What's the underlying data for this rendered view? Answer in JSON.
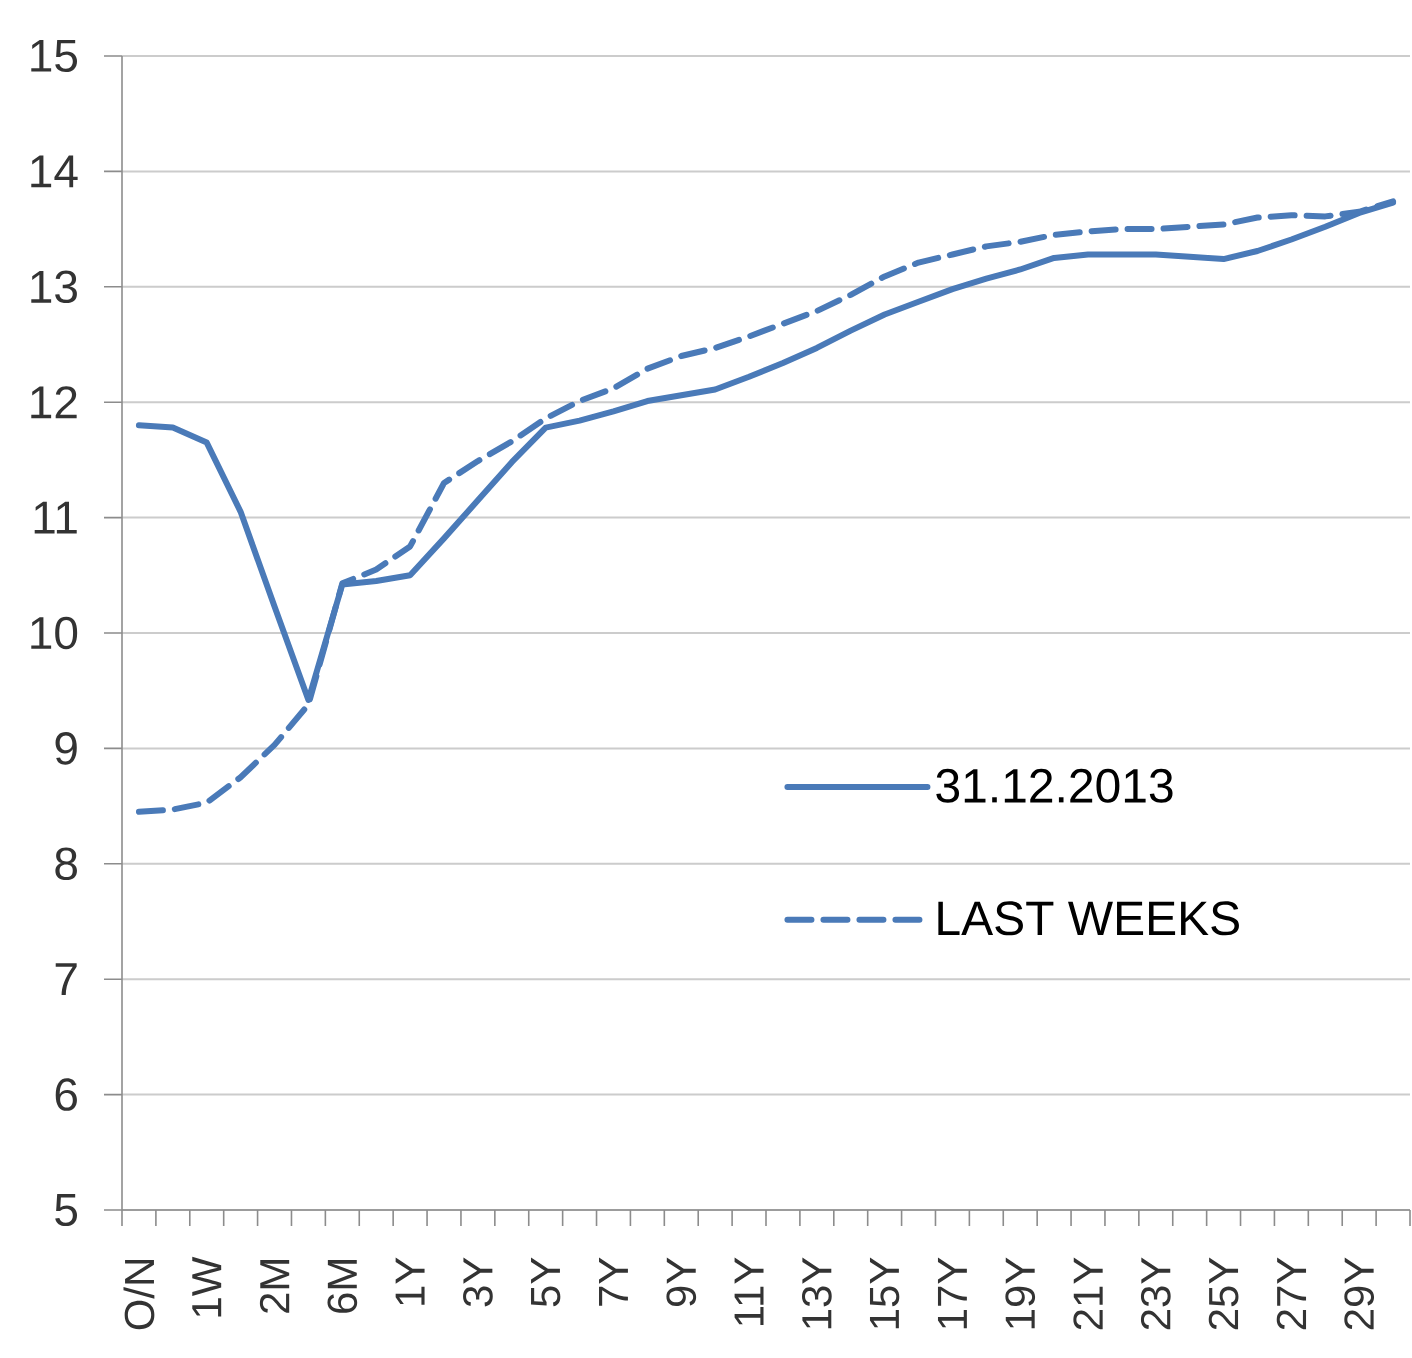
{
  "chart_data": {
    "type": "line",
    "categories": [
      "O/N",
      null,
      "1W",
      null,
      "2M",
      null,
      "6M",
      null,
      "1Y",
      null,
      "3Y",
      null,
      "5Y",
      null,
      "7Y",
      null,
      "9Y",
      null,
      "11Y",
      null,
      "13Y",
      null,
      "15Y",
      null,
      "17Y",
      null,
      "19Y",
      null,
      "21Y",
      null,
      "23Y",
      null,
      "25Y",
      null,
      "27Y",
      null,
      "29Y",
      null
    ],
    "series": [
      {
        "name": "31.12.2013",
        "color": "#4a7ab8",
        "line_style": "solid",
        "values": [
          11.8,
          11.78,
          11.65,
          11.05,
          10.23,
          9.42,
          10.42,
          10.45,
          10.5,
          10.82,
          11.15,
          11.48,
          11.78,
          11.84,
          11.92,
          12.01,
          12.06,
          12.11,
          12.22,
          12.34,
          12.47,
          12.62,
          12.76,
          12.87,
          12.98,
          13.07,
          13.15,
          13.25,
          13.28,
          13.28,
          13.28,
          13.26,
          13.24,
          13.31,
          13.41,
          13.52,
          13.64,
          13.73
        ]
      },
      {
        "name": "LAST WEEKS",
        "color": "#4a7ab8",
        "line_style": "dashed",
        "values": [
          8.45,
          8.47,
          8.53,
          8.75,
          9.03,
          9.38,
          10.43,
          10.55,
          10.75,
          11.3,
          11.49,
          11.66,
          11.86,
          12.01,
          12.12,
          12.29,
          12.4,
          12.47,
          12.57,
          12.68,
          12.79,
          12.93,
          13.09,
          13.21,
          13.28,
          13.35,
          13.39,
          13.45,
          13.48,
          13.5,
          13.5,
          13.52,
          13.54,
          13.6,
          13.62,
          13.61,
          13.65,
          13.74
        ]
      }
    ],
    "ylim": [
      5,
      15
    ],
    "yticks": [
      5,
      6,
      7,
      8,
      9,
      10,
      11,
      12,
      13,
      14,
      15
    ],
    "grid": "y",
    "legend": "bottom right"
  }
}
